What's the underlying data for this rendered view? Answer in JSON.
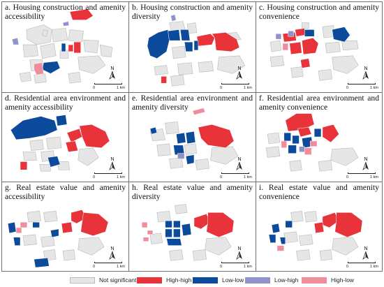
{
  "colors": {
    "not_significant": "#e6e6e6",
    "high_high": "#e8333b",
    "low_low": "#0c4a9b",
    "low_high": "#8f93c9",
    "high_low": "#ef8d9d",
    "outline": "#b8b8b8"
  },
  "north_label": "N",
  "scale_start": "0",
  "scale_end": "1 km",
  "panels": [
    {
      "title": "a. Housing construction and amenity accessibility"
    },
    {
      "title": "b. Housing construction and amenity diversity"
    },
    {
      "title": "c. Housing construction and amenity convenience"
    },
    {
      "title": "d. Residential area environment and amenity accessibility"
    },
    {
      "title": "e. Residential area environment and amenity diversity"
    },
    {
      "title": "f. Residential area environment and amenity convenience"
    },
    {
      "title": "g. Real estate value and amenity accessibility"
    },
    {
      "title": "h. Real estate value and amenity diversity"
    },
    {
      "title": "i. Real estate value and amenity convenience"
    }
  ],
  "legend": [
    {
      "label": "Not significant",
      "color": "#e6e6e6"
    },
    {
      "label": "High-high",
      "color": "#e8333b"
    },
    {
      "label": "Low-low",
      "color": "#0c4a9b"
    },
    {
      "label": "Low-high",
      "color": "#8f93c9"
    },
    {
      "label": "High-low",
      "color": "#ef8d9d"
    }
  ]
}
